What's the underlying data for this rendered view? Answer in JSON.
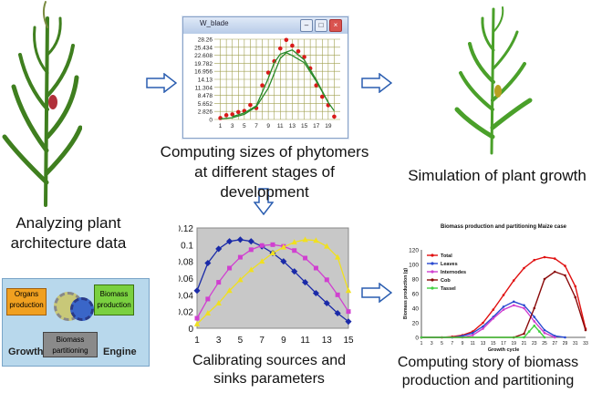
{
  "captions": {
    "analyzing": "Analyzing plant architecture data",
    "computing_sizes": "Computing sizes of phytomers  at different stages of development",
    "simulation": "Simulation of plant growth",
    "calibrating": "Calibrating sources and sinks parameters",
    "computing_story": "Computing  story of biomass production and partitioning"
  },
  "engine_diagram": {
    "organs": "Organs production",
    "biomass_prod": "Biomass production",
    "biomass_part": "Biomass partitioning",
    "growth": "Growth",
    "engine": "Engine"
  },
  "window": {
    "title": "W_blade"
  },
  "colors": {
    "arrow": "#2a5db0",
    "plant": "#3f7f1f",
    "window_dots": "#d91a1a",
    "window_line": "#2a8a2a",
    "window_grid": "#8c8c3a"
  },
  "chart_data": [
    {
      "type": "scatter",
      "title": "W_blade",
      "x_ticks": [
        "1",
        "3",
        "5",
        "7",
        "9",
        "11",
        "13",
        "15",
        "17",
        "19"
      ],
      "y_ticks": [
        "0",
        "2.826",
        "5.652",
        "8.478",
        "11.304",
        "14.13",
        "16.956",
        "19.782",
        "22.608",
        "25.434",
        "28.26"
      ],
      "series": [
        {
          "values": [
            [
              1,
              0.5
            ],
            [
              2,
              1.5
            ],
            [
              3,
              1.8
            ],
            [
              4,
              2.6
            ],
            [
              5,
              3.0
            ],
            [
              6,
              5.1
            ],
            [
              7,
              4.0
            ],
            [
              8,
              12.0
            ],
            [
              9,
              16.5
            ],
            [
              10,
              20.5
            ],
            [
              11,
              25.0
            ],
            [
              12,
              28.0
            ],
            [
              13,
              26.0
            ],
            [
              14,
              24.0
            ],
            [
              15,
              22.0
            ],
            [
              16,
              18.0
            ],
            [
              17,
              12.0
            ],
            [
              18,
              8.0
            ],
            [
              19,
              5.0
            ],
            [
              20,
              1.0
            ]
          ]
        },
        {
          "values": [
            [
              1,
              0.2
            ],
            [
              3,
              0.6
            ],
            [
              5,
              1.8
            ],
            [
              7,
              4.5
            ],
            [
              9,
              11.0
            ],
            [
              11,
              21.5
            ],
            [
              12,
              23.5
            ],
            [
              13,
              22.5
            ],
            [
              15,
              20.0
            ],
            [
              17,
              13.5
            ],
            [
              19,
              6.0
            ],
            [
              20,
              3.0
            ]
          ]
        },
        {
          "values": [
            [
              3,
              1.0
            ],
            [
              5,
              2.3
            ],
            [
              7,
              4.8
            ],
            [
              9,
              14.5
            ],
            [
              10,
              20.0
            ],
            [
              11,
              23.0
            ],
            [
              13,
              24.5
            ],
            [
              15,
              21.0
            ],
            [
              17,
              14.0
            ],
            [
              19,
              6.0
            ]
          ]
        }
      ],
      "xlim": [
        0,
        21
      ],
      "ylim": [
        0,
        28.26
      ]
    },
    {
      "type": "line",
      "x": [
        1,
        2,
        3,
        4,
        5,
        6,
        7,
        8,
        9,
        10,
        11,
        12,
        13,
        14,
        15
      ],
      "y_ticks": [
        "0",
        "0.02",
        "0.04",
        "0.06",
        "0.08",
        "0.1",
        "0.12"
      ],
      "x_ticks": [
        "1",
        "3",
        "5",
        "7",
        "9",
        "11",
        "13",
        "15"
      ],
      "series": [
        {
          "values": [
            0.045,
            0.078,
            0.095,
            0.104,
            0.106,
            0.104,
            0.098,
            0.09,
            0.08,
            0.068,
            0.055,
            0.042,
            0.03,
            0.018,
            0.008
          ],
          "color": "#1a2aa8"
        },
        {
          "values": [
            0.012,
            0.035,
            0.055,
            0.072,
            0.085,
            0.094,
            0.099,
            0.1,
            0.098,
            0.093,
            0.084,
            0.072,
            0.058,
            0.04,
            0.02
          ],
          "color": "#d040d0"
        },
        {
          "values": [
            0.005,
            0.018,
            0.03,
            0.045,
            0.058,
            0.07,
            0.08,
            0.09,
            0.097,
            0.103,
            0.106,
            0.105,
            0.098,
            0.085,
            0.045
          ],
          "color": "#f0e020"
        }
      ],
      "ylim": [
        0,
        0.12
      ],
      "background": "#c8c8c8"
    },
    {
      "type": "line",
      "title": "Biomass production and partitioning Maize case",
      "ylabel": "Biomass production (g)",
      "xlabel": "Growth cycle",
      "x_ticks": [
        "1",
        "3",
        "5",
        "7",
        "9",
        "11",
        "13",
        "15",
        "17",
        "19",
        "21",
        "23",
        "25",
        "27",
        "29",
        "31",
        "33"
      ],
      "y_ticks": [
        "0",
        "20",
        "40",
        "60",
        "80",
        "100",
        "120"
      ],
      "legend": [
        "Total",
        "Leaves",
        "Internodes",
        "Cob",
        "Tassel"
      ],
      "series": [
        {
          "name": "Total",
          "color": "#e01010",
          "values": [
            [
              1,
              0
            ],
            [
              5,
              0
            ],
            [
              7,
              1
            ],
            [
              9,
              3
            ],
            [
              11,
              8
            ],
            [
              13,
              20
            ],
            [
              15,
              38
            ],
            [
              17,
              58
            ],
            [
              19,
              78
            ],
            [
              21,
              95
            ],
            [
              23,
              106
            ],
            [
              25,
              110
            ],
            [
              27,
              108
            ],
            [
              29,
              98
            ],
            [
              31,
              70
            ],
            [
              33,
              12
            ]
          ]
        },
        {
          "name": "Leaves",
          "color": "#2a4ad0",
          "values": [
            [
              1,
              0
            ],
            [
              7,
              0
            ],
            [
              9,
              2
            ],
            [
              11,
              6
            ],
            [
              13,
              15
            ],
            [
              15,
              28
            ],
            [
              17,
              42
            ],
            [
              19,
              49
            ],
            [
              21,
              44
            ],
            [
              23,
              28
            ],
            [
              25,
              10
            ],
            [
              27,
              2
            ],
            [
              29,
              0
            ]
          ]
        },
        {
          "name": "Internodes",
          "color": "#d040d0",
          "values": [
            [
              1,
              0
            ],
            [
              9,
              0
            ],
            [
              11,
              3
            ],
            [
              13,
              12
            ],
            [
              15,
              26
            ],
            [
              17,
              38
            ],
            [
              19,
              44
            ],
            [
              21,
              40
            ],
            [
              23,
              22
            ],
            [
              25,
              6
            ],
            [
              27,
              0
            ]
          ]
        },
        {
          "name": "Cob",
          "color": "#8a0a0a",
          "values": [
            [
              1,
              0
            ],
            [
              19,
              0
            ],
            [
              21,
              5
            ],
            [
              23,
              40
            ],
            [
              25,
              80
            ],
            [
              27,
              90
            ],
            [
              29,
              85
            ],
            [
              31,
              55
            ],
            [
              33,
              10
            ]
          ]
        },
        {
          "name": "Tassel",
          "color": "#40d040",
          "values": [
            [
              1,
              0
            ],
            [
              21,
              0
            ],
            [
              22,
              8
            ],
            [
              23,
              16
            ],
            [
              24,
              8
            ],
            [
              25,
              0
            ]
          ]
        }
      ],
      "ylim": [
        0,
        120
      ]
    }
  ]
}
